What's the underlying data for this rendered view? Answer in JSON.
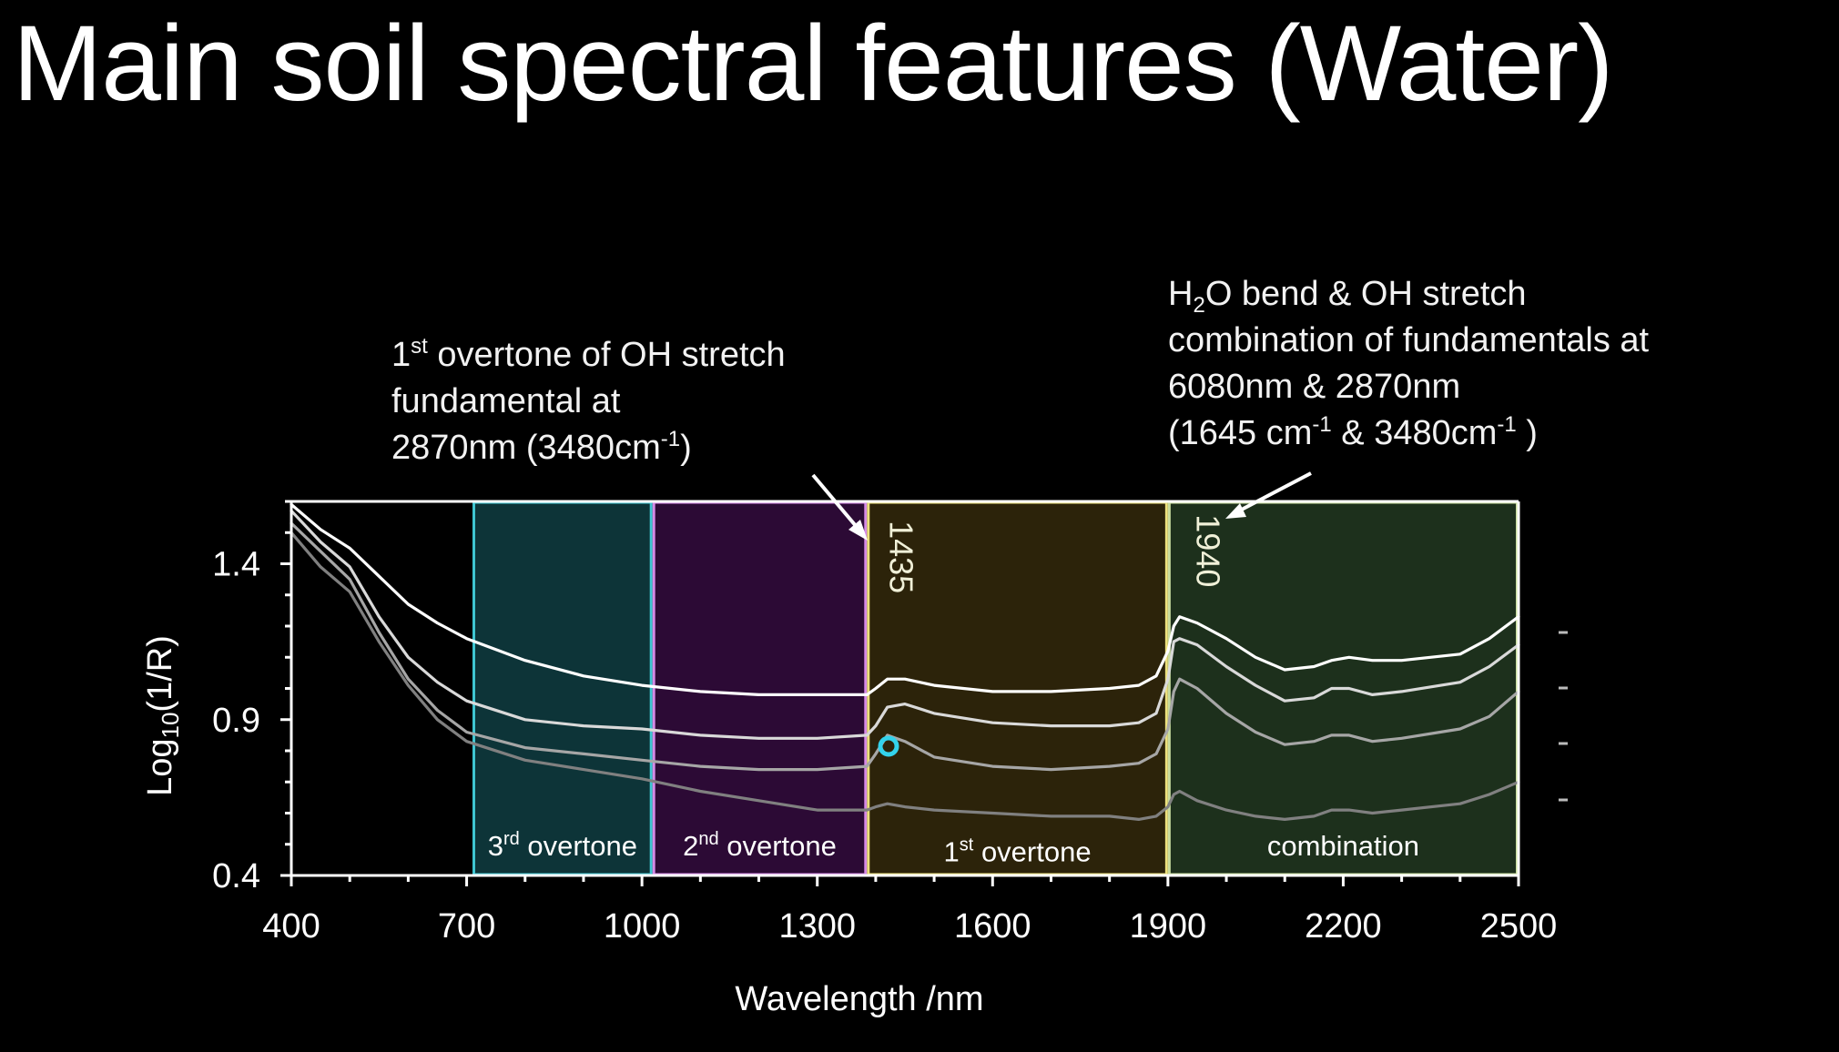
{
  "title": "Main soil spectral features (Water)",
  "annotations": {
    "left": {
      "l1_pre": "1",
      "l1_sup": "st",
      "l1_post": " overtone of OH stretch",
      "l2": "fundamental at",
      "l3_pre": "2870nm (3480cm",
      "l3_sup": "-1",
      "l3_post": ")"
    },
    "right": {
      "l1_pre": "H",
      "l1_sub": "2",
      "l1_post": "O bend & OH stretch",
      "l2": "combination of fundamentals at",
      "l3": "6080nm & 2870nm",
      "l4_a": "(1645 cm",
      "l4_sup1": "-1",
      "l4_b": " & 3480cm",
      "l4_sup2": "-1",
      "l4_c": "  )"
    }
  },
  "chart_data": {
    "type": "line",
    "title": "",
    "xlabel": "Wavelength /nm",
    "ylabel_main": "Log",
    "ylabel_sub": "10",
    "ylabel_end": "(1/R)",
    "xlim": [
      400,
      2500
    ],
    "ylim": [
      0.4,
      1.6
    ],
    "xticks": [
      400,
      700,
      1000,
      1300,
      1600,
      1900,
      2200,
      2500
    ],
    "yticks": [
      0.4,
      0.9,
      1.4
    ],
    "ytick_labels": [
      "0.4",
      "0.9",
      "1.4"
    ],
    "regions": [
      {
        "name": "3rd overtone",
        "pre": "3",
        "sup": "rd",
        "post": " overtone",
        "x0": 710,
        "x1": 1018,
        "color": "#3fc6d2",
        "fill": "#0d3438",
        "label_y": 0.5
      },
      {
        "name": "2nd overtone",
        "pre": "2",
        "sup": "nd",
        "post": " overtone",
        "x0": 1018,
        "x1": 1385,
        "color": "#d68ae6",
        "fill": "#2c0a35",
        "label_y": 0.5
      },
      {
        "name": "1st overtone",
        "pre": "1",
        "sup": "st",
        "post": " overtone",
        "x0": 1385,
        "x1": 1900,
        "color": "#ece07c",
        "fill": "#2c230a",
        "label_y": 0.48
      },
      {
        "name": "combination",
        "pre": "combination",
        "sup": "",
        "post": "",
        "x0": 1900,
        "x1": 2500,
        "color": "#c8dc9e",
        "fill": "#1d301c",
        "label_y": 0.5
      }
    ],
    "peak_labels": [
      {
        "text": "1435",
        "x": 1435,
        "y": 1.48
      },
      {
        "text": "1940",
        "x": 1960,
        "y": 1.5
      }
    ],
    "series": [
      {
        "color": "#ffffff",
        "x": [
          400,
          450,
          500,
          550,
          600,
          650,
          700,
          800,
          900,
          1000,
          1100,
          1200,
          1300,
          1385,
          1400,
          1420,
          1450,
          1500,
          1600,
          1700,
          1800,
          1850,
          1880,
          1900,
          1910,
          1920,
          1950,
          2000,
          2050,
          2100,
          2150,
          2180,
          2210,
          2250,
          2300,
          2400,
          2450,
          2500
        ],
        "y": [
          1.59,
          1.51,
          1.45,
          1.36,
          1.27,
          1.21,
          1.16,
          1.09,
          1.04,
          1.01,
          0.99,
          0.98,
          0.98,
          0.98,
          1.0,
          1.03,
          1.03,
          1.01,
          0.99,
          0.99,
          1.0,
          1.01,
          1.04,
          1.12,
          1.2,
          1.23,
          1.21,
          1.16,
          1.1,
          1.06,
          1.07,
          1.09,
          1.1,
          1.09,
          1.09,
          1.11,
          1.16,
          1.23
        ]
      },
      {
        "color": "#d9d9d9",
        "x": [
          400,
          450,
          500,
          550,
          600,
          650,
          700,
          800,
          900,
          1000,
          1100,
          1200,
          1300,
          1385,
          1400,
          1420,
          1450,
          1500,
          1600,
          1700,
          1800,
          1850,
          1880,
          1900,
          1910,
          1920,
          1950,
          2000,
          2050,
          2100,
          2150,
          2180,
          2210,
          2250,
          2300,
          2400,
          2450,
          2500
        ],
        "y": [
          1.57,
          1.47,
          1.39,
          1.23,
          1.1,
          1.02,
          0.96,
          0.9,
          0.88,
          0.87,
          0.85,
          0.84,
          0.84,
          0.85,
          0.88,
          0.94,
          0.95,
          0.92,
          0.89,
          0.88,
          0.88,
          0.89,
          0.92,
          1.03,
          1.15,
          1.16,
          1.14,
          1.07,
          1.01,
          0.96,
          0.97,
          1.0,
          1.0,
          0.98,
          0.99,
          1.02,
          1.07,
          1.14
        ]
      },
      {
        "color": "#a6a6a6",
        "x": [
          400,
          450,
          500,
          550,
          600,
          650,
          700,
          800,
          900,
          1000,
          1100,
          1200,
          1300,
          1385,
          1400,
          1420,
          1450,
          1500,
          1600,
          1700,
          1800,
          1850,
          1880,
          1900,
          1910,
          1920,
          1950,
          2000,
          2050,
          2100,
          2150,
          2180,
          2210,
          2250,
          2300,
          2400,
          2450,
          2500
        ],
        "y": [
          1.53,
          1.44,
          1.35,
          1.18,
          1.03,
          0.93,
          0.86,
          0.81,
          0.79,
          0.77,
          0.75,
          0.74,
          0.74,
          0.75,
          0.79,
          0.85,
          0.83,
          0.78,
          0.75,
          0.74,
          0.75,
          0.76,
          0.79,
          0.87,
          0.99,
          1.03,
          1.0,
          0.92,
          0.86,
          0.82,
          0.83,
          0.85,
          0.85,
          0.83,
          0.84,
          0.87,
          0.91,
          0.99
        ]
      },
      {
        "color": "#808080",
        "x": [
          400,
          450,
          500,
          550,
          600,
          650,
          700,
          800,
          900,
          1000,
          1100,
          1200,
          1300,
          1385,
          1400,
          1420,
          1450,
          1500,
          1600,
          1700,
          1800,
          1850,
          1880,
          1900,
          1910,
          1920,
          1950,
          2000,
          2050,
          2100,
          2150,
          2180,
          2210,
          2250,
          2300,
          2400,
          2450,
          2500
        ],
        "y": [
          1.5,
          1.39,
          1.31,
          1.15,
          1.01,
          0.9,
          0.83,
          0.77,
          0.74,
          0.71,
          0.67,
          0.64,
          0.61,
          0.61,
          0.62,
          0.63,
          0.62,
          0.61,
          0.6,
          0.59,
          0.59,
          0.58,
          0.59,
          0.62,
          0.66,
          0.67,
          0.64,
          0.61,
          0.59,
          0.58,
          0.59,
          0.61,
          0.61,
          0.6,
          0.61,
          0.63,
          0.66,
          0.7
        ]
      }
    ]
  }
}
